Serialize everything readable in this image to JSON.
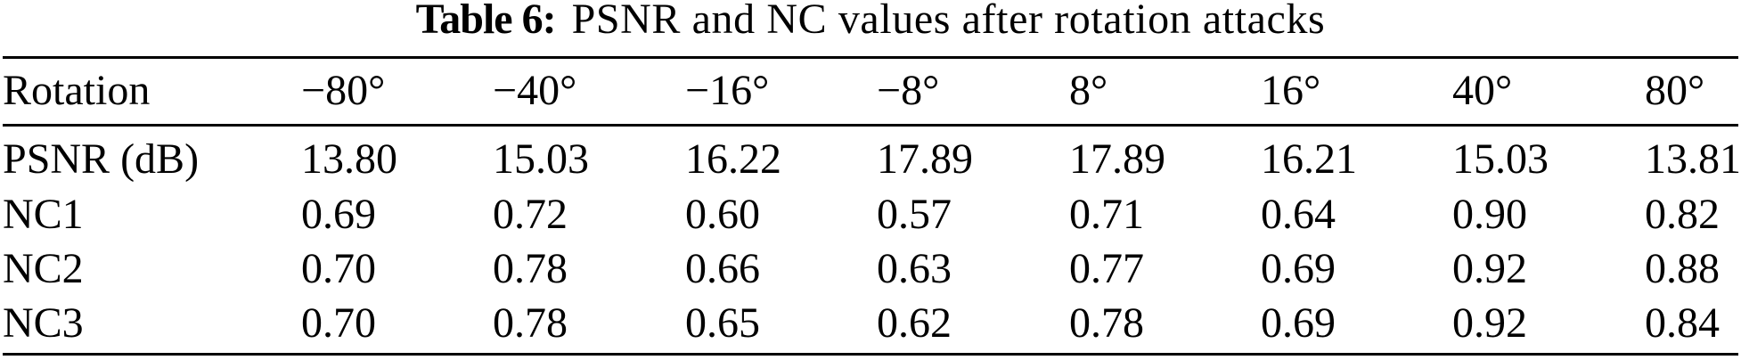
{
  "caption": {
    "label": "Table 6:",
    "text": "PSNR and NC values after rotation attacks"
  },
  "table": {
    "columns": [
      "Rotation",
      "−80°",
      "−40°",
      "−16°",
      "−8°",
      "8°",
      "16°",
      "40°",
      "80°"
    ],
    "rows": [
      {
        "label": "PSNR (dB)",
        "values": [
          "13.80",
          "15.03",
          "16.22",
          "17.89",
          "17.89",
          "16.21",
          "15.03",
          "13.81"
        ]
      },
      {
        "label": "NC1",
        "values": [
          "0.69",
          "0.72",
          "0.60",
          "0.57",
          "0.71",
          "0.64",
          "0.90",
          "0.82"
        ]
      },
      {
        "label": "NC2",
        "values": [
          "0.70",
          "0.78",
          "0.66",
          "0.63",
          "0.77",
          "0.69",
          "0.92",
          "0.88"
        ]
      },
      {
        "label": "NC3",
        "values": [
          "0.70",
          "0.78",
          "0.65",
          "0.62",
          "0.78",
          "0.69",
          "0.92",
          "0.84"
        ]
      }
    ]
  },
  "chart_data": {
    "type": "table",
    "title": "Table 6: PSNR and NC values after rotation attacks",
    "columns": [
      "Rotation",
      "-80°",
      "-40°",
      "-16°",
      "-8°",
      "8°",
      "16°",
      "40°",
      "80°"
    ],
    "series": [
      {
        "name": "PSNR (dB)",
        "values": [
          13.8,
          15.03,
          16.22,
          17.89,
          17.89,
          16.21,
          15.03,
          13.81
        ]
      },
      {
        "name": "NC1",
        "values": [
          0.69,
          0.72,
          0.6,
          0.57,
          0.71,
          0.64,
          0.9,
          0.82
        ]
      },
      {
        "name": "NC2",
        "values": [
          0.7,
          0.78,
          0.66,
          0.63,
          0.77,
          0.69,
          0.92,
          0.88
        ]
      },
      {
        "name": "NC3",
        "values": [
          0.7,
          0.78,
          0.65,
          0.62,
          0.78,
          0.69,
          0.92,
          0.84
        ]
      }
    ]
  }
}
